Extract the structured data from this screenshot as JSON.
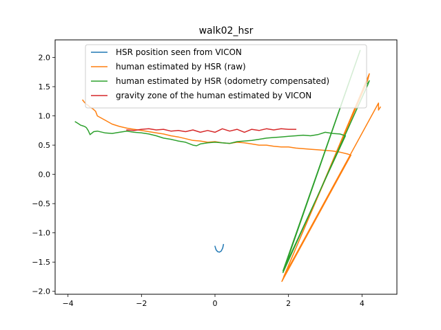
{
  "chart_data": {
    "type": "line",
    "title": "walk02_hsr",
    "xlabel": "",
    "ylabel": "",
    "xlim": [
      -4.35,
      4.95
    ],
    "ylim": [
      -2.05,
      2.3
    ],
    "xticks": [
      -4,
      -2,
      0,
      2,
      4
    ],
    "yticks": [
      -2.0,
      -1.5,
      -1.0,
      -0.5,
      0.0,
      0.5,
      1.0,
      1.5,
      2.0
    ],
    "xtick_labels": [
      "−4",
      "−2",
      "0",
      "2",
      "4"
    ],
    "ytick_labels": [
      "−2.0",
      "−1.5",
      "−1.0",
      "−0.5",
      "0.0",
      "0.5",
      "1.0",
      "1.5",
      "2.0"
    ],
    "grid": false,
    "legend_position": "top-center",
    "series": [
      {
        "name": "HSR position seen from VICON",
        "color": "#1f77b4",
        "x": [
          0.0,
          0.03,
          0.07,
          0.12,
          0.17,
          0.21,
          0.23
        ],
        "y": [
          -1.23,
          -1.29,
          -1.32,
          -1.33,
          -1.31,
          -1.26,
          -1.2
        ]
      },
      {
        "name": "human estimated by HSR (raw)",
        "color": "#ff7f0e",
        "x": [
          -3.6,
          -3.55,
          -3.5,
          -3.45,
          -3.4,
          -3.32,
          -3.25,
          -3.2,
          -3.0,
          -2.8,
          -2.6,
          -2.4,
          -2.2,
          -2.0,
          -1.8,
          -1.6,
          -1.4,
          -1.2,
          -1.0,
          -0.8,
          -0.6,
          -0.4,
          -0.2,
          0.0,
          0.2,
          0.4,
          0.6,
          0.8,
          1.0,
          1.2,
          1.4,
          1.6,
          1.8,
          2.0,
          2.2,
          2.4,
          2.6,
          2.8,
          3.0,
          3.2,
          3.4,
          3.6,
          3.7,
          1.82,
          4.2,
          4.15,
          1.87,
          4.45,
          4.45,
          4.5
        ],
        "y": [
          1.27,
          1.23,
          1.2,
          1.18,
          1.15,
          1.12,
          1.08,
          1.0,
          0.93,
          0.86,
          0.82,
          0.79,
          0.77,
          0.75,
          0.73,
          0.71,
          0.69,
          0.66,
          0.64,
          0.61,
          0.58,
          0.57,
          0.55,
          0.56,
          0.54,
          0.53,
          0.55,
          0.54,
          0.52,
          0.5,
          0.5,
          0.48,
          0.47,
          0.47,
          0.45,
          0.44,
          0.43,
          0.42,
          0.41,
          0.4,
          0.38,
          0.35,
          0.33,
          -1.83,
          1.72,
          1.6,
          -1.75,
          1.22,
          1.1,
          1.15
        ]
      },
      {
        "name": "human estimated by HSR (odometry compensated)",
        "color": "#2ca02c",
        "x": [
          -3.8,
          -3.75,
          -3.7,
          -3.65,
          -3.6,
          -3.55,
          -3.5,
          -3.45,
          -3.4,
          -3.3,
          -3.2,
          -3.0,
          -2.8,
          -2.6,
          -2.4,
          -2.2,
          -2.0,
          -1.8,
          -1.6,
          -1.4,
          -1.2,
          -1.0,
          -0.8,
          -0.6,
          -0.5,
          -0.4,
          -0.2,
          0.0,
          0.2,
          0.4,
          0.6,
          0.8,
          1.0,
          1.2,
          1.4,
          1.6,
          1.8,
          2.0,
          2.2,
          2.4,
          2.6,
          2.8,
          3.0,
          3.2,
          3.4,
          3.55,
          1.85,
          3.95,
          1.85,
          4.15,
          4.2,
          4.15
        ],
        "y": [
          0.9,
          0.88,
          0.86,
          0.84,
          0.83,
          0.82,
          0.8,
          0.75,
          0.68,
          0.73,
          0.74,
          0.71,
          0.7,
          0.72,
          0.74,
          0.72,
          0.71,
          0.69,
          0.66,
          0.62,
          0.6,
          0.57,
          0.55,
          0.5,
          0.49,
          0.52,
          0.54,
          0.55,
          0.54,
          0.53,
          0.56,
          0.57,
          0.58,
          0.6,
          0.62,
          0.63,
          0.64,
          0.65,
          0.66,
          0.67,
          0.66,
          0.68,
          0.72,
          0.7,
          0.69,
          0.66,
          -1.65,
          2.12,
          -1.68,
          1.52,
          1.6,
          1.55
        ]
      },
      {
        "name": "gravity zone of the human estimated by VICON",
        "color": "#d62728",
        "x": [
          -2.4,
          -2.2,
          -2.0,
          -1.8,
          -1.6,
          -1.4,
          -1.2,
          -1.0,
          -0.8,
          -0.6,
          -0.4,
          -0.2,
          0.0,
          0.2,
          0.4,
          0.6,
          0.8,
          1.0,
          1.2,
          1.4,
          1.6,
          1.8,
          2.0,
          2.2
        ],
        "y": [
          0.76,
          0.75,
          0.77,
          0.78,
          0.76,
          0.77,
          0.74,
          0.75,
          0.73,
          0.76,
          0.72,
          0.75,
          0.72,
          0.78,
          0.74,
          0.77,
          0.72,
          0.77,
          0.75,
          0.78,
          0.76,
          0.78,
          0.77,
          0.77
        ]
      }
    ]
  }
}
